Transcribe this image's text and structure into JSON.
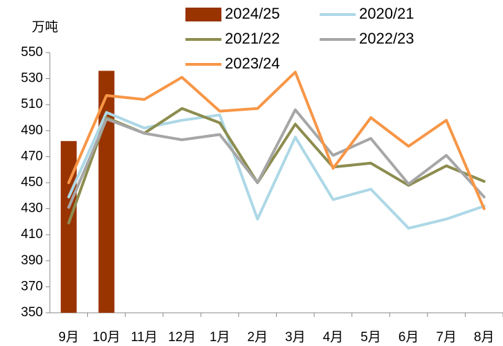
{
  "chart_data": {
    "type": "combo",
    "y_label": "万吨",
    "categories": [
      "9月",
      "10月",
      "11月",
      "12月",
      "1月",
      "2月",
      "3月",
      "4月",
      "5月",
      "6月",
      "7月",
      "8月"
    ],
    "series": [
      {
        "name": "2024/25",
        "type": "bar",
        "color": "#993300",
        "values": [
          482,
          536,
          null,
          null,
          null,
          null,
          null,
          null,
          null,
          null,
          null,
          null
        ]
      },
      {
        "name": "2020/21",
        "type": "line",
        "color": "#add8e6",
        "values": [
          439,
          504,
          492,
          498,
          502,
          422,
          485,
          437,
          445,
          415,
          422,
          432
        ]
      },
      {
        "name": "2021/22",
        "type": "line",
        "color": "#8c8c4f",
        "values": [
          419,
          500,
          488,
          507,
          496,
          450,
          495,
          462,
          465,
          448,
          463,
          451
        ]
      },
      {
        "name": "2022/23",
        "type": "line",
        "color": "#a6a6a6",
        "values": [
          431,
          499,
          488,
          483,
          487,
          450,
          506,
          471,
          484,
          449,
          471,
          439
        ]
      },
      {
        "name": "2023/24",
        "type": "line",
        "color": "#f79646",
        "values": [
          450,
          517,
          514,
          531,
          505,
          507,
          535,
          461,
          500,
          478,
          498,
          430
        ]
      }
    ],
    "ylim": [
      350,
      550
    ],
    "yticks": [
      350,
      370,
      390,
      410,
      430,
      450,
      470,
      490,
      510,
      530,
      550
    ]
  }
}
